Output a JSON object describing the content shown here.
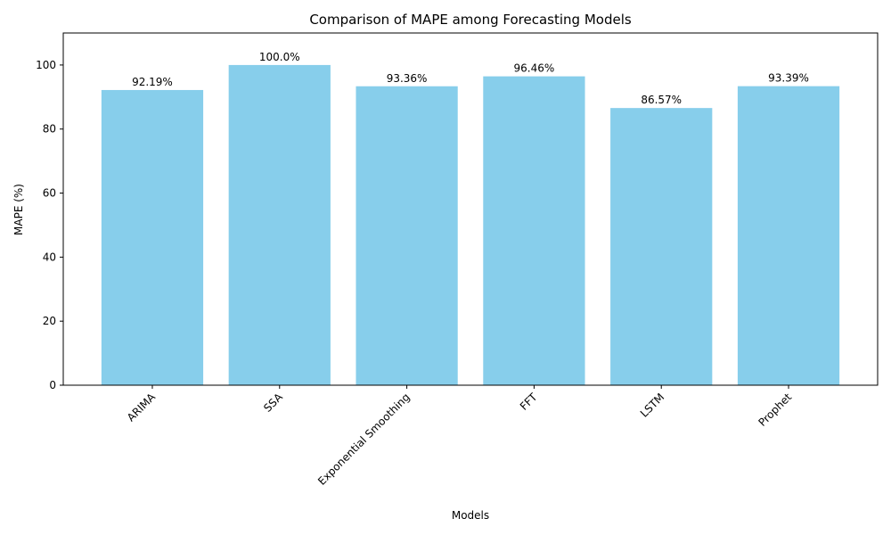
{
  "chart_data": {
    "type": "bar",
    "title": "Comparison of MAPE among Forecasting Models",
    "xlabel": "Models",
    "ylabel": "MAPE (%)",
    "categories": [
      "ARIMA",
      "SSA",
      "Exponential Smoothing",
      "FFT",
      "LSTM",
      "Prophet"
    ],
    "values": [
      92.19,
      100.0,
      93.36,
      96.46,
      86.57,
      93.39
    ],
    "data_labels": [
      "92.19%",
      "100.0%",
      "93.36%",
      "96.46%",
      "86.57%",
      "93.39%"
    ],
    "ylim": [
      0,
      110
    ],
    "yticks": [
      0,
      20,
      40,
      60,
      80,
      100
    ],
    "bar_color": "#87ceeb",
    "grid": false,
    "legend": "none"
  }
}
